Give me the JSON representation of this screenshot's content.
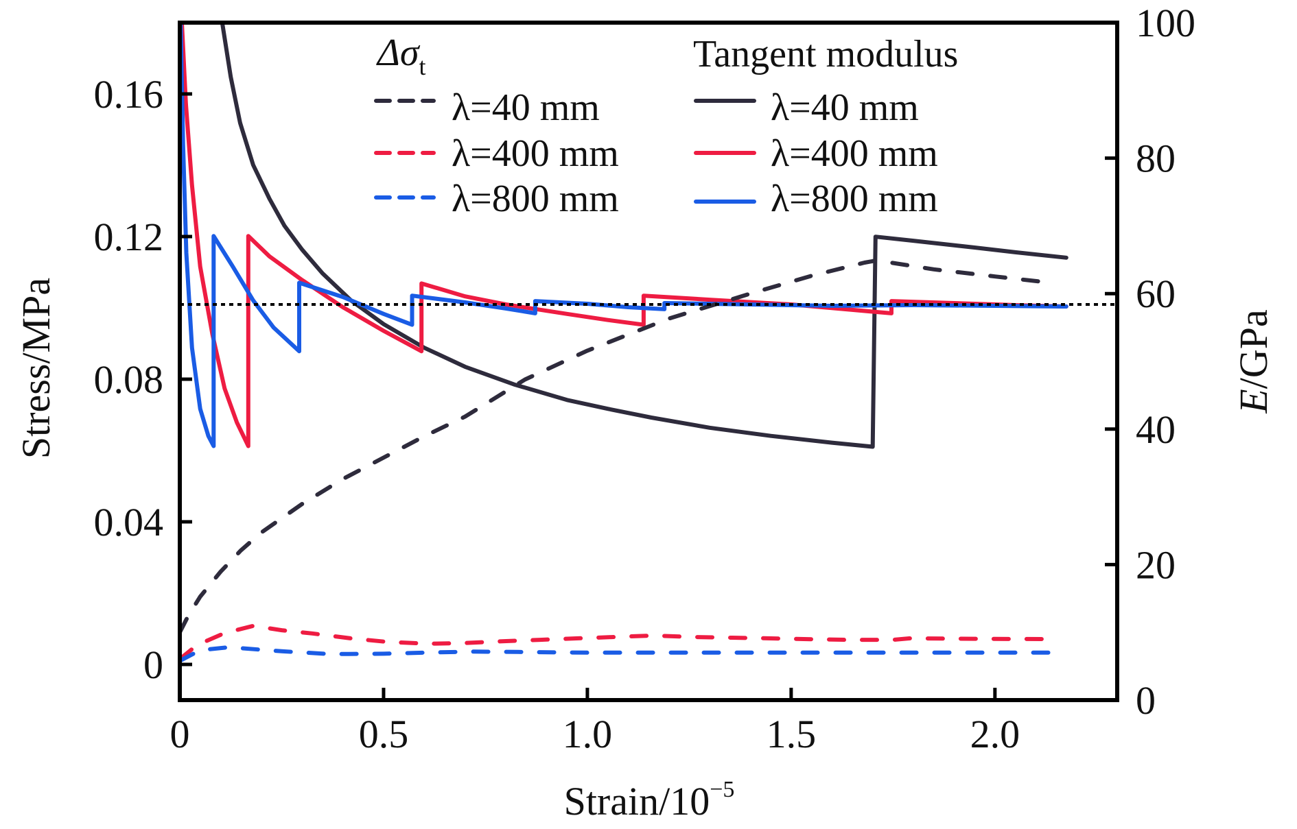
{
  "chart_data": {
    "type": "line",
    "title": "",
    "xlabel": "Strain/10",
    "xlabel_exponent": "−5",
    "ylabel_left": "Stress/MPa",
    "ylabel_right_italic": "E",
    "ylabel_right_rest": "/GPa",
    "xlim": [
      0,
      2.3
    ],
    "ylim_left": [
      -0.01,
      0.18
    ],
    "ylim_right": [
      0,
      100
    ],
    "xticks": [
      0,
      0.5,
      1.0,
      1.5,
      2.0
    ],
    "xtick_labels": [
      "0",
      "0.5",
      "1.0",
      "1.5",
      "2.0"
    ],
    "yticks_left": [
      0,
      0.04,
      0.08,
      0.12,
      0.16
    ],
    "ytick_labels_left": [
      "0",
      "0.04",
      "0.08",
      "0.12",
      "0.16"
    ],
    "yticks_right": [
      0,
      20,
      40,
      60,
      80,
      100
    ],
    "ytick_labels_right": [
      "0",
      "20",
      "40",
      "60",
      "80",
      "100"
    ],
    "grid": false,
    "reference_line": {
      "axis": "right",
      "value": 58.4,
      "style": "dotted",
      "color": "#000000"
    },
    "legend": {
      "placement": "top-center",
      "groups": [
        {
          "title": "Δσ",
          "title_sub": "t",
          "entries": [
            {
              "label": "λ=40 mm",
              "series": "stress_40",
              "style": "dashed",
              "color": "#2e2b3c"
            },
            {
              "label": "λ=400 mm",
              "series": "stress_400",
              "style": "dashed",
              "color": "#ee1c42"
            },
            {
              "label": "λ=800 mm",
              "series": "stress_800",
              "style": "dashed",
              "color": "#1a5ce5"
            }
          ]
        },
        {
          "title": "Tangent modulus",
          "title_sub": "",
          "entries": [
            {
              "label": "λ=40 mm",
              "series": "modulus_40",
              "style": "solid",
              "color": "#2e2b3c"
            },
            {
              "label": "λ=400 mm",
              "series": "modulus_400",
              "style": "solid",
              "color": "#ee1c42"
            },
            {
              "label": "λ=800 mm",
              "series": "modulus_800",
              "style": "solid",
              "color": "#1a5ce5"
            }
          ]
        }
      ]
    },
    "series": [
      {
        "name": "modulus_40",
        "label": "Tangent modulus λ=40 mm",
        "axis": "right",
        "style": "solid",
        "color": "#2e2b3c",
        "points": [
          [
            0.104,
            100
          ],
          [
            0.125,
            92
          ],
          [
            0.148,
            85.2
          ],
          [
            0.18,
            79
          ],
          [
            0.22,
            74
          ],
          [
            0.257,
            70
          ],
          [
            0.3,
            66.5
          ],
          [
            0.35,
            63
          ],
          [
            0.42,
            59
          ],
          [
            0.5,
            55.5
          ],
          [
            0.6,
            52
          ],
          [
            0.7,
            49.2
          ],
          [
            0.82,
            46.6
          ],
          [
            0.95,
            44.3
          ],
          [
            1.05,
            43
          ],
          [
            1.157,
            41.7
          ],
          [
            1.3,
            40.2
          ],
          [
            1.45,
            39
          ],
          [
            1.6,
            38
          ],
          [
            1.7,
            37.4
          ],
          [
            1.707,
            68.4
          ],
          [
            1.8,
            67.8
          ],
          [
            1.95,
            66.8
          ],
          [
            2.05,
            66.1
          ],
          [
            2.175,
            65.3
          ]
        ]
      },
      {
        "name": "modulus_400",
        "label": "Tangent modulus λ=400 mm",
        "axis": "right",
        "style": "solid",
        "color": "#ee1c42",
        "points": [
          [
            0.005,
            100
          ],
          [
            0.015,
            88
          ],
          [
            0.03,
            76
          ],
          [
            0.05,
            64
          ],
          [
            0.08,
            54
          ],
          [
            0.11,
            46
          ],
          [
            0.14,
            41
          ],
          [
            0.168,
            37.5
          ],
          [
            0.168,
            68.5
          ],
          [
            0.22,
            65.5
          ],
          [
            0.3,
            62
          ],
          [
            0.4,
            58
          ],
          [
            0.5,
            54.5
          ],
          [
            0.593,
            51.5
          ],
          [
            0.593,
            61.5
          ],
          [
            0.7,
            59.6
          ],
          [
            0.8,
            58.4
          ],
          [
            0.95,
            57
          ],
          [
            1.05,
            56.1
          ],
          [
            1.138,
            55.4
          ],
          [
            1.138,
            59.7
          ],
          [
            1.3,
            59.1
          ],
          [
            1.5,
            58.4
          ],
          [
            1.65,
            57.6
          ],
          [
            1.746,
            57.1
          ],
          [
            1.746,
            58.9
          ],
          [
            1.9,
            58.6
          ],
          [
            2.05,
            58.3
          ],
          [
            2.175,
            58.1
          ]
        ]
      },
      {
        "name": "modulus_800",
        "label": "Tangent modulus λ=800 mm",
        "axis": "right",
        "style": "solid",
        "color": "#1a5ce5",
        "points": [
          [
            0.002,
            100
          ],
          [
            0.008,
            82
          ],
          [
            0.016,
            66
          ],
          [
            0.03,
            52
          ],
          [
            0.05,
            43
          ],
          [
            0.07,
            39
          ],
          [
            0.083,
            37.5
          ],
          [
            0.083,
            68.5
          ],
          [
            0.13,
            64
          ],
          [
            0.18,
            59
          ],
          [
            0.23,
            55
          ],
          [
            0.293,
            51.5
          ],
          [
            0.293,
            61.6
          ],
          [
            0.4,
            59.5
          ],
          [
            0.5,
            57
          ],
          [
            0.57,
            55.4
          ],
          [
            0.57,
            59.7
          ],
          [
            0.7,
            58.7
          ],
          [
            0.8,
            57.8
          ],
          [
            0.872,
            57.1
          ],
          [
            0.872,
            58.9
          ],
          [
            1.0,
            58.5
          ],
          [
            1.1,
            58
          ],
          [
            1.189,
            57.7
          ],
          [
            1.189,
            58.6
          ],
          [
            1.4,
            58.4
          ],
          [
            1.6,
            58.2
          ],
          [
            1.8,
            58.3
          ],
          [
            2.0,
            58.2
          ],
          [
            2.175,
            58.1
          ]
        ]
      },
      {
        "name": "stress_40",
        "label": "Δσt λ=40 mm",
        "axis": "left",
        "style": "dashed",
        "color": "#2e2b3c",
        "points": [
          [
            0.0,
            0.009
          ],
          [
            0.02,
            0.0135
          ],
          [
            0.05,
            0.019
          ],
          [
            0.1,
            0.026
          ],
          [
            0.15,
            0.032
          ],
          [
            0.2,
            0.037
          ],
          [
            0.3,
            0.045
          ],
          [
            0.4,
            0.052
          ],
          [
            0.5,
            0.058
          ],
          [
            0.6,
            0.064
          ],
          [
            0.7,
            0.0695
          ],
          [
            0.847,
            0.0799
          ],
          [
            1.0,
            0.088
          ],
          [
            1.2,
            0.097
          ],
          [
            1.4,
            0.104
          ],
          [
            1.55,
            0.109
          ],
          [
            1.68,
            0.1127
          ],
          [
            1.71,
            0.1133
          ],
          [
            1.85,
            0.1108
          ],
          [
            2.0,
            0.1088
          ],
          [
            2.148,
            0.1069
          ]
        ]
      },
      {
        "name": "stress_400",
        "label": "Δσt λ=400 mm",
        "axis": "left",
        "style": "dashed",
        "color": "#ee1c42",
        "points": [
          [
            0.0,
            0.0015
          ],
          [
            0.042,
            0.0054
          ],
          [
            0.11,
            0.0088
          ],
          [
            0.18,
            0.0108
          ],
          [
            0.25,
            0.0096
          ],
          [
            0.325,
            0.0087
          ],
          [
            0.42,
            0.0073
          ],
          [
            0.51,
            0.0063
          ],
          [
            0.61,
            0.0058
          ],
          [
            0.7,
            0.006
          ],
          [
            0.79,
            0.0065
          ],
          [
            0.884,
            0.0069
          ],
          [
            0.973,
            0.0073
          ],
          [
            1.066,
            0.0077
          ],
          [
            1.16,
            0.0081
          ],
          [
            1.26,
            0.0077
          ],
          [
            1.355,
            0.0075
          ],
          [
            1.45,
            0.0073
          ],
          [
            1.54,
            0.0071
          ],
          [
            1.635,
            0.0069
          ],
          [
            1.75,
            0.0069
          ],
          [
            1.79,
            0.0073
          ],
          [
            1.95,
            0.0072
          ],
          [
            2.14,
            0.0071
          ]
        ]
      },
      {
        "name": "stress_800",
        "label": "Δσt λ=800 mm",
        "axis": "left",
        "style": "dashed",
        "color": "#1a5ce5",
        "points": [
          [
            0.0,
            0.001
          ],
          [
            0.05,
            0.004
          ],
          [
            0.12,
            0.0048
          ],
          [
            0.25,
            0.0037
          ],
          [
            0.37,
            0.0029
          ],
          [
            0.5,
            0.003
          ],
          [
            0.6,
            0.0033
          ],
          [
            0.72,
            0.0036
          ],
          [
            0.83,
            0.0035
          ],
          [
            1.0,
            0.0033
          ],
          [
            1.3,
            0.0033
          ],
          [
            1.6,
            0.0033
          ],
          [
            1.9,
            0.0033
          ],
          [
            2.17,
            0.0033
          ]
        ]
      }
    ]
  }
}
